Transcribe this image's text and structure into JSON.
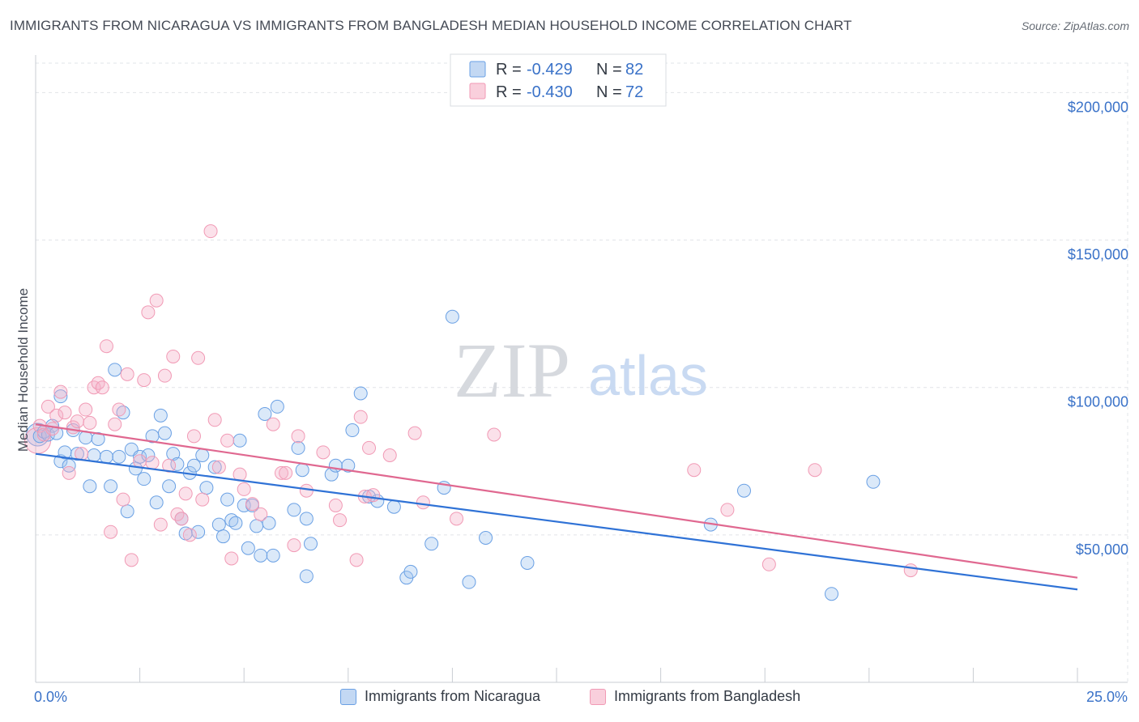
{
  "title": "IMMIGRANTS FROM NICARAGUA VS IMMIGRANTS FROM BANGLADESH MEDIAN HOUSEHOLD INCOME CORRELATION CHART",
  "source": "Source: ZipAtlas.com",
  "watermark": {
    "zip": "ZIP",
    "atlas": "atlas"
  },
  "legend": {
    "rows": [
      {
        "r_label": "R =",
        "r_value": "-0.429",
        "n_label": "N =",
        "n_value": "82"
      },
      {
        "r_label": "R =",
        "r_value": "-0.430",
        "n_label": "N =",
        "n_value": "72"
      }
    ]
  },
  "chart_data": {
    "type": "scatter",
    "title": "IMMIGRANTS FROM NICARAGUA VS IMMIGRANTS FROM BANGLADESH MEDIAN HOUSEHOLD INCOME CORRELATION CHART",
    "xlabel": "",
    "ylabel": "Median Household Income",
    "xlim": [
      0,
      25
    ],
    "ylim": [
      0,
      210000
    ],
    "x_tick_labels": [
      "0.0%",
      "25.0%"
    ],
    "y_ticks": [
      50000,
      100000,
      150000,
      200000
    ],
    "y_tick_labels": [
      "$50,000",
      "$100,000",
      "$150,000",
      "$200,000"
    ],
    "grid": true,
    "legend_position": "top-center",
    "colors": {
      "nicaragua": "#6aa0e4",
      "bangladesh": "#f19ab5",
      "nicaragua_line": "#2f72d6",
      "bangladesh_line": "#e06890",
      "tick_label": "#3a72c8"
    },
    "series": [
      {
        "name": "Immigrants from Nicaragua",
        "trend": {
          "x": [
            0,
            25
          ],
          "y": [
            77500,
            31500
          ]
        },
        "points": [
          [
            0.1,
            83500
          ],
          [
            0.2,
            85000
          ],
          [
            0.3,
            84000
          ],
          [
            0.4,
            87000
          ],
          [
            0.5,
            84500
          ],
          [
            0.6,
            97000
          ],
          [
            0.6,
            75000
          ],
          [
            0.7,
            78000
          ],
          [
            0.8,
            73500
          ],
          [
            0.9,
            85500
          ],
          [
            1.0,
            77500
          ],
          [
            1.2,
            83000
          ],
          [
            1.3,
            66500
          ],
          [
            1.4,
            77000
          ],
          [
            1.5,
            82500
          ],
          [
            1.7,
            76500
          ],
          [
            1.8,
            66500
          ],
          [
            1.9,
            106000
          ],
          [
            2.0,
            76500
          ],
          [
            2.1,
            91500
          ],
          [
            2.2,
            58000
          ],
          [
            2.3,
            79000
          ],
          [
            2.4,
            72500
          ],
          [
            2.5,
            76500
          ],
          [
            2.6,
            69000
          ],
          [
            2.7,
            77000
          ],
          [
            2.8,
            83500
          ],
          [
            2.9,
            61000
          ],
          [
            3.0,
            90500
          ],
          [
            3.1,
            84500
          ],
          [
            3.2,
            66500
          ],
          [
            3.3,
            77500
          ],
          [
            3.4,
            74000
          ],
          [
            3.5,
            55500
          ],
          [
            3.6,
            50500
          ],
          [
            3.7,
            71000
          ],
          [
            3.8,
            73500
          ],
          [
            3.9,
            51000
          ],
          [
            4.0,
            77000
          ],
          [
            4.1,
            66000
          ],
          [
            4.3,
            73000
          ],
          [
            4.4,
            53500
          ],
          [
            4.5,
            49500
          ],
          [
            4.6,
            62000
          ],
          [
            4.7,
            55000
          ],
          [
            4.8,
            54000
          ],
          [
            4.9,
            82000
          ],
          [
            5.0,
            60000
          ],
          [
            5.1,
            45500
          ],
          [
            5.2,
            60000
          ],
          [
            5.3,
            53000
          ],
          [
            5.4,
            43000
          ],
          [
            5.5,
            91000
          ],
          [
            5.6,
            54000
          ],
          [
            5.7,
            43000
          ],
          [
            5.8,
            93500
          ],
          [
            6.2,
            58500
          ],
          [
            6.3,
            79500
          ],
          [
            6.4,
            72000
          ],
          [
            6.5,
            55500
          ],
          [
            6.6,
            47000
          ],
          [
            6.5,
            36000
          ],
          [
            7.1,
            70500
          ],
          [
            7.2,
            73500
          ],
          [
            7.5,
            73500
          ],
          [
            7.6,
            85500
          ],
          [
            7.8,
            98000
          ],
          [
            8.0,
            63000
          ],
          [
            8.2,
            61500
          ],
          [
            8.6,
            59500
          ],
          [
            8.9,
            35500
          ],
          [
            9.0,
            37500
          ],
          [
            9.5,
            47000
          ],
          [
            9.8,
            66000
          ],
          [
            10.0,
            124000
          ],
          [
            10.4,
            34000
          ],
          [
            10.8,
            49000
          ],
          [
            11.8,
            40500
          ],
          [
            16.2,
            53500
          ],
          [
            17.0,
            65000
          ],
          [
            19.1,
            30000
          ],
          [
            20.1,
            68000
          ]
        ]
      },
      {
        "name": "Immigrants from Bangladesh",
        "trend": {
          "x": [
            0,
            25
          ],
          "y": [
            87500,
            35500
          ]
        },
        "points": [
          [
            0.1,
            87000
          ],
          [
            0.2,
            84000
          ],
          [
            0.3,
            93500
          ],
          [
            0.4,
            86000
          ],
          [
            0.5,
            90500
          ],
          [
            0.6,
            98500
          ],
          [
            0.7,
            91500
          ],
          [
            0.8,
            71000
          ],
          [
            0.9,
            86500
          ],
          [
            1.0,
            88500
          ],
          [
            1.1,
            77500
          ],
          [
            1.2,
            92500
          ],
          [
            1.3,
            88000
          ],
          [
            1.4,
            100000
          ],
          [
            1.5,
            101500
          ],
          [
            1.6,
            100000
          ],
          [
            1.7,
            114000
          ],
          [
            1.8,
            51000
          ],
          [
            1.9,
            87500
          ],
          [
            2.0,
            92500
          ],
          [
            2.1,
            62000
          ],
          [
            2.2,
            104500
          ],
          [
            2.3,
            41500
          ],
          [
            2.5,
            75000
          ],
          [
            2.6,
            102500
          ],
          [
            2.7,
            125500
          ],
          [
            2.8,
            74500
          ],
          [
            2.9,
            129500
          ],
          [
            3.0,
            53500
          ],
          [
            3.1,
            104000
          ],
          [
            3.2,
            73500
          ],
          [
            3.3,
            110500
          ],
          [
            3.4,
            57000
          ],
          [
            3.5,
            55500
          ],
          [
            3.6,
            64000
          ],
          [
            3.7,
            50000
          ],
          [
            3.8,
            83500
          ],
          [
            3.9,
            110000
          ],
          [
            4.0,
            62000
          ],
          [
            4.2,
            153000
          ],
          [
            4.3,
            89000
          ],
          [
            4.4,
            73000
          ],
          [
            4.6,
            82000
          ],
          [
            4.7,
            42000
          ],
          [
            4.9,
            70500
          ],
          [
            5.0,
            65500
          ],
          [
            5.2,
            60500
          ],
          [
            5.4,
            57000
          ],
          [
            5.7,
            87500
          ],
          [
            5.9,
            71000
          ],
          [
            6.0,
            71000
          ],
          [
            6.2,
            46500
          ],
          [
            6.3,
            83500
          ],
          [
            6.5,
            65000
          ],
          [
            6.9,
            78000
          ],
          [
            7.2,
            60000
          ],
          [
            7.3,
            55000
          ],
          [
            7.7,
            41500
          ],
          [
            7.8,
            90000
          ],
          [
            7.9,
            63000
          ],
          [
            8.0,
            79500
          ],
          [
            8.1,
            63500
          ],
          [
            8.5,
            77000
          ],
          [
            9.1,
            84500
          ],
          [
            9.3,
            61000
          ],
          [
            10.1,
            55500
          ],
          [
            11.0,
            84000
          ],
          [
            15.8,
            72000
          ],
          [
            16.6,
            58500
          ],
          [
            17.6,
            40000
          ],
          [
            18.7,
            72000
          ],
          [
            21.0,
            38000
          ]
        ]
      }
    ]
  }
}
